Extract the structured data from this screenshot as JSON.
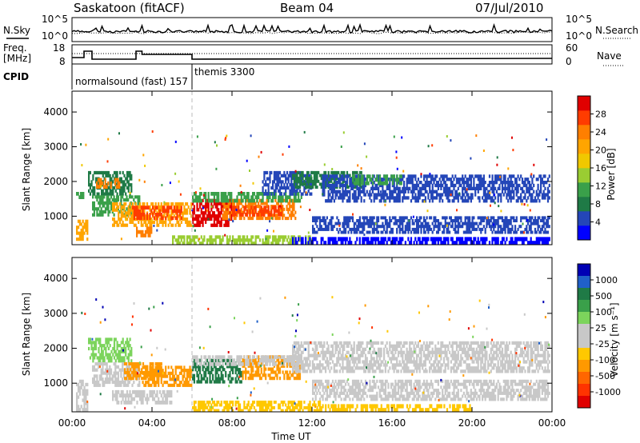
{
  "header": {
    "station": "Saskatoon (fitACF)",
    "beam": "Beam 04",
    "date": "07/Jul/2010"
  },
  "noise_panel": {
    "left_label": "N.Sky",
    "right_label": "N.Search",
    "left_ticks": [
      "10^5",
      "10^0"
    ],
    "right_ticks": [
      "10^5",
      "10^0"
    ]
  },
  "freq_panel": {
    "left_label_1": "Freq.",
    "left_label_2": "[MHz]",
    "right_label": "Nave",
    "left_ticks": [
      "18",
      "8"
    ],
    "right_ticks": [
      "60",
      "0"
    ]
  },
  "cpid": {
    "label": "CPID",
    "segments": [
      {
        "name": "normalsound (fast) 157",
        "start_hour": 0
      },
      {
        "name": "themis 3300",
        "start_hour": 6
      }
    ]
  },
  "time_axis": {
    "label": "Time UT",
    "ticks": [
      "00:00",
      "04:00",
      "08:00",
      "12:00",
      "16:00",
      "20:00",
      "00:00"
    ]
  },
  "chart_data": [
    {
      "type": "heatmap",
      "name": "power",
      "ylabel": "Slant Range [km]",
      "xlim": [
        0,
        24
      ],
      "ylim": [
        180,
        4600
      ],
      "yticks": [
        1000,
        2000,
        3000,
        4000
      ],
      "colorbar": {
        "label": "Power [dB]",
        "ticks": [
          "4",
          "8",
          "12",
          "16",
          "20",
          "24",
          "28"
        ],
        "colors": [
          "#0000ff",
          "#2446b8",
          "#1f7a46",
          "#3aa04a",
          "#9acd32",
          "#f0c800",
          "#ffa500",
          "#ff7f00",
          "#ff3c00",
          "#e00000"
        ]
      },
      "regions": [
        {
          "t0": 0.2,
          "t1": 0.8,
          "r0": 300,
          "r1": 900,
          "color": "#ffa500"
        },
        {
          "t0": 0.2,
          "t1": 0.6,
          "r0": 1500,
          "r1": 1700,
          "color": "#3aa04a"
        },
        {
          "t0": 0.8,
          "t1": 3.0,
          "r0": 1600,
          "r1": 2300,
          "color": "#1f7a46"
        },
        {
          "t0": 1.2,
          "t1": 2.4,
          "r0": 1800,
          "r1": 2100,
          "color": "#ff7f00"
        },
        {
          "t0": 1.0,
          "t1": 3.4,
          "r0": 1000,
          "r1": 1600,
          "color": "#3aa04a"
        },
        {
          "t0": 2.0,
          "t1": 6.0,
          "r0": 700,
          "r1": 1400,
          "color": "#ffa500"
        },
        {
          "t0": 3.0,
          "t1": 5.5,
          "r0": 900,
          "r1": 1300,
          "color": "#ff3c00"
        },
        {
          "t0": 3.2,
          "t1": 4.0,
          "r0": 400,
          "r1": 700,
          "color": "#ff7f00"
        },
        {
          "t0": 6.0,
          "t1": 8.0,
          "r0": 700,
          "r1": 1500,
          "color": "#e00000"
        },
        {
          "t0": 7.5,
          "t1": 11.2,
          "r0": 900,
          "r1": 1500,
          "color": "#ff7f00"
        },
        {
          "t0": 8.0,
          "t1": 10.5,
          "r0": 1000,
          "r1": 1300,
          "color": "#ff3c00"
        },
        {
          "t0": 6.0,
          "t1": 11.5,
          "r0": 1400,
          "r1": 1700,
          "color": "#3aa04a"
        },
        {
          "t0": 9.5,
          "t1": 12.0,
          "r0": 1600,
          "r1": 2300,
          "color": "#2446b8"
        },
        {
          "t0": 11.0,
          "t1": 14.5,
          "r0": 1800,
          "r1": 2300,
          "color": "#1f7a46"
        },
        {
          "t0": 12.5,
          "t1": 23.9,
          "r0": 1400,
          "r1": 2200,
          "color": "#2446b8"
        },
        {
          "t0": 14.0,
          "t1": 16.5,
          "r0": 1900,
          "r1": 2200,
          "color": "#3aa04a"
        },
        {
          "t0": 12.0,
          "t1": 23.9,
          "r0": 500,
          "r1": 1000,
          "color": "#2446b8"
        },
        {
          "t0": 5.0,
          "t1": 12.0,
          "r0": 180,
          "r1": 450,
          "color": "#9acd32"
        },
        {
          "t0": 11.0,
          "t1": 23.9,
          "r0": 180,
          "r1": 400,
          "color": "#0000ff"
        }
      ]
    },
    {
      "type": "heatmap",
      "name": "velocity",
      "ylabel": "Slant Range [km]",
      "xlim": [
        0,
        24
      ],
      "ylim": [
        180,
        4600
      ],
      "yticks": [
        1000,
        2000,
        3000,
        4000
      ],
      "colorbar": {
        "label": "Velocity [m s⁻¹]",
        "ticks": [
          "1000",
          "500",
          "100",
          "25",
          "-25",
          "-100",
          "-500",
          "-1000"
        ],
        "colors": [
          "#0000b4",
          "#2060c8",
          "#1f7a46",
          "#3aa04a",
          "#7cd45c",
          "#c8c8c8",
          "#c8c8c8",
          "#ffc800",
          "#ff9900",
          "#ff6600",
          "#ff3300",
          "#e00000"
        ]
      },
      "regions": [
        {
          "t0": 0.2,
          "t1": 0.8,
          "r0": 200,
          "r1": 1100,
          "color": "#c8c8c8"
        },
        {
          "t0": 0.8,
          "t1": 3.0,
          "r0": 1600,
          "r1": 2300,
          "color": "#7cd45c"
        },
        {
          "t0": 1.0,
          "t1": 3.4,
          "r0": 900,
          "r1": 1600,
          "color": "#c8c8c8"
        },
        {
          "t0": 2.6,
          "t1": 4.5,
          "r0": 1100,
          "r1": 1600,
          "color": "#ff9900"
        },
        {
          "t0": 3.5,
          "t1": 6.0,
          "r0": 900,
          "r1": 1500,
          "color": "#ff9900"
        },
        {
          "t0": 2.0,
          "t1": 5.0,
          "r0": 400,
          "r1": 800,
          "color": "#c8c8c8"
        },
        {
          "t0": 6.0,
          "t1": 8.5,
          "r0": 1000,
          "r1": 1700,
          "color": "#1f7a46"
        },
        {
          "t0": 8.5,
          "t1": 11.5,
          "r0": 1100,
          "r1": 1800,
          "color": "#ff9900"
        },
        {
          "t0": 6.0,
          "t1": 11.5,
          "r0": 1500,
          "r1": 1800,
          "color": "#c8c8c8"
        },
        {
          "t0": 11.0,
          "t1": 23.9,
          "r0": 1300,
          "r1": 2200,
          "color": "#c8c8c8"
        },
        {
          "t0": 12.0,
          "t1": 23.9,
          "r0": 500,
          "r1": 1100,
          "color": "#c8c8c8"
        },
        {
          "t0": 6.0,
          "t1": 12.5,
          "r0": 180,
          "r1": 500,
          "color": "#ffc800"
        },
        {
          "t0": 12.5,
          "t1": 20.0,
          "r0": 180,
          "r1": 400,
          "color": "#ffc800"
        }
      ]
    }
  ]
}
